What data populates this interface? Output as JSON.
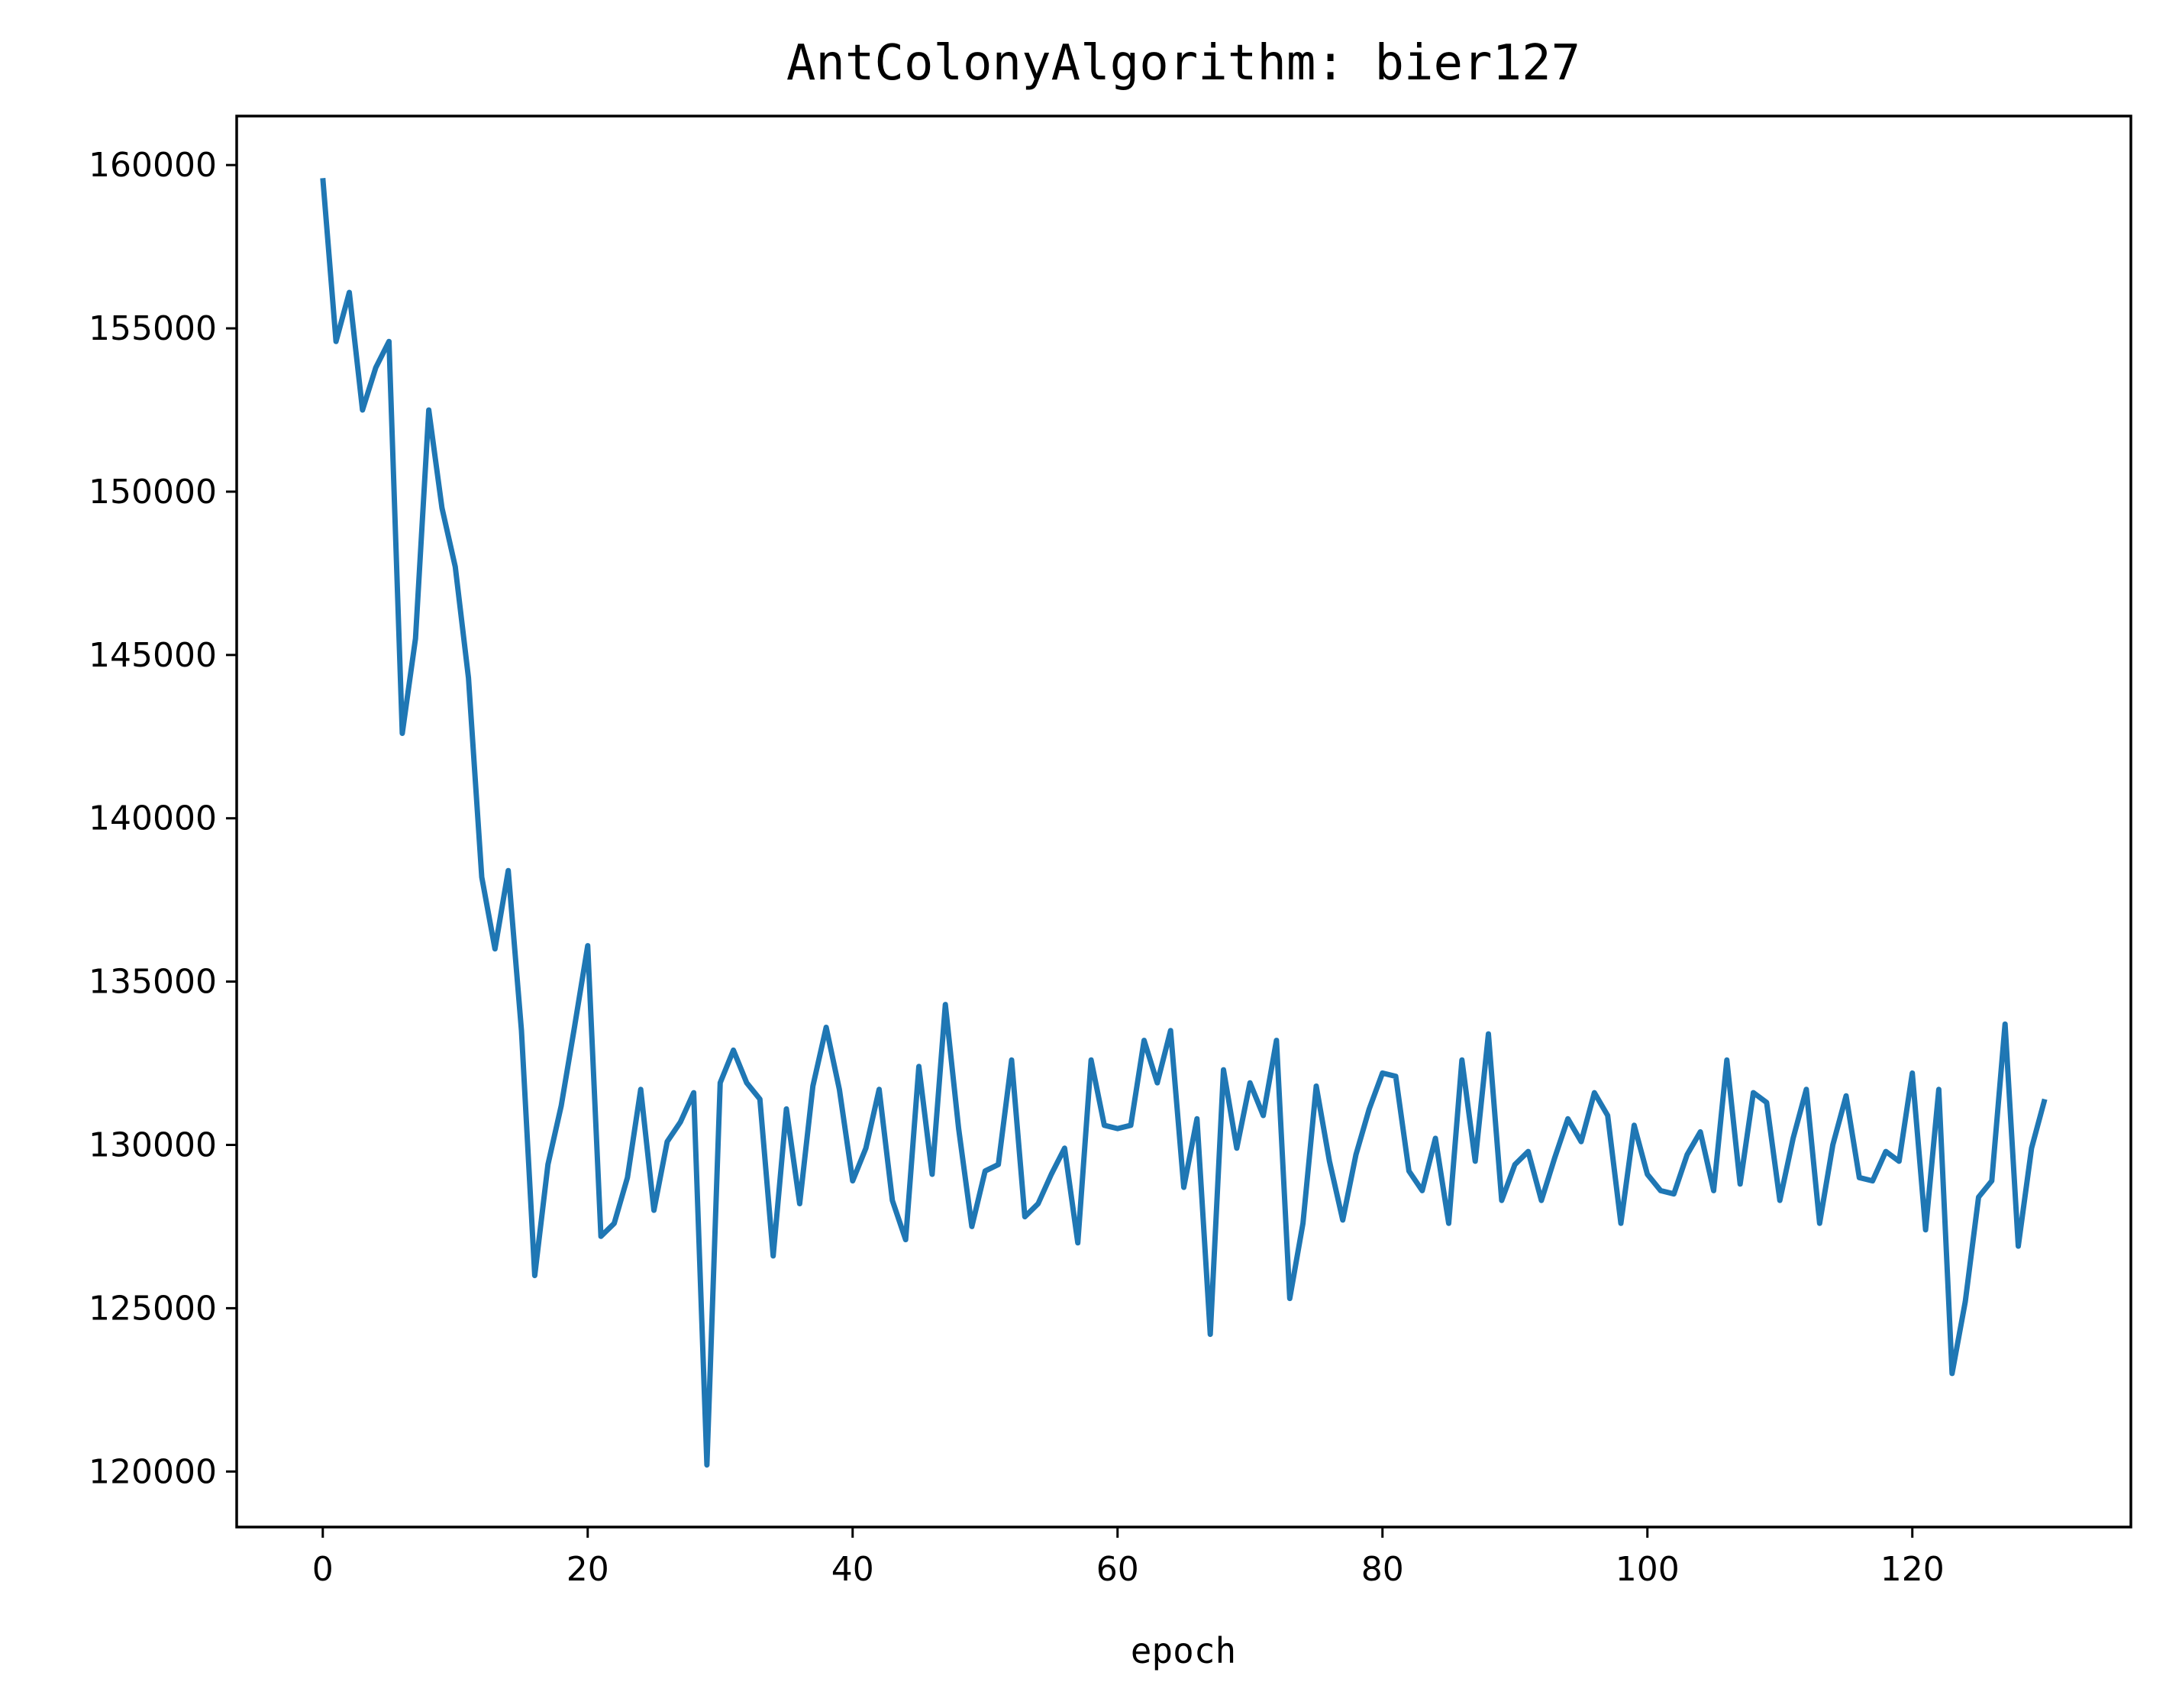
{
  "chart_data": {
    "type": "line",
    "title": "AntColonyAlgorithm: bier127",
    "xlabel": "epoch",
    "ylabel": "",
    "xlim": [
      -6.5,
      136.5
    ],
    "ylim": [
      118300,
      161500
    ],
    "xticks": [
      0,
      20,
      40,
      60,
      80,
      100,
      120
    ],
    "yticks": [
      120000,
      125000,
      130000,
      135000,
      140000,
      145000,
      150000,
      155000,
      160000
    ],
    "grid": false,
    "legend": "none",
    "line_color": "#1f77b4",
    "series": [
      {
        "x": [
          0,
          1,
          2,
          3,
          4,
          5,
          6,
          7,
          8,
          9,
          10,
          11,
          12,
          13,
          14,
          15,
          16,
          17,
          18,
          19,
          20,
          21,
          22,
          23,
          24,
          25,
          26,
          27,
          28,
          29,
          30,
          31,
          32,
          33,
          34,
          35,
          36,
          37,
          38,
          39,
          40,
          41,
          42,
          43,
          44,
          45,
          46,
          47,
          48,
          49,
          50,
          51,
          52,
          53,
          54,
          55,
          56,
          57,
          58,
          59,
          60,
          61,
          62,
          63,
          64,
          65,
          66,
          67,
          68,
          69,
          70,
          71,
          72,
          73,
          74,
          75,
          76,
          77,
          78,
          79,
          80,
          81,
          82,
          83,
          84,
          85,
          86,
          87,
          88,
          89,
          90,
          91,
          92,
          93,
          94,
          95,
          96,
          97,
          98,
          99,
          100,
          101,
          102,
          103,
          104,
          105,
          106,
          107,
          108,
          109,
          110,
          111,
          112,
          113,
          114,
          115,
          116,
          117,
          118,
          119,
          120,
          121,
          122,
          123,
          124,
          125,
          126,
          127,
          128,
          129,
          130
        ],
        "values": [
          159600,
          154600,
          156100,
          152500,
          153800,
          154600,
          142600,
          145500,
          152500,
          149500,
          147700,
          144300,
          138200,
          136000,
          138400,
          133500,
          126000,
          129400,
          131200,
          133600,
          136100,
          127200,
          127600,
          129000,
          131700,
          128000,
          130100,
          130700,
          131600,
          120200,
          131900,
          132900,
          131900,
          131400,
          126600,
          131100,
          128200,
          131800,
          133600,
          131700,
          128900,
          129900,
          131700,
          128300,
          127100,
          132400,
          129100,
          134300,
          130500,
          127500,
          129200,
          129400,
          132600,
          127800,
          128200,
          129100,
          129900,
          127000,
          132600,
          130600,
          130500,
          130600,
          133200,
          131900,
          133500,
          128700,
          130800,
          124200,
          132300,
          129900,
          131900,
          130900,
          133200,
          125300,
          127600,
          131800,
          129500,
          127700,
          129700,
          131100,
          132200,
          132100,
          129200,
          128600,
          130200,
          127600,
          132600,
          129500,
          133400,
          128300,
          129400,
          129800,
          128300,
          129600,
          130800,
          130100,
          131600,
          130900,
          127600,
          130600,
          129100,
          128600,
          128500,
          129700,
          130400,
          128600,
          132600,
          128800,
          131600,
          131300,
          128300,
          130200,
          131700,
          127600,
          130000,
          131500,
          129000,
          128900,
          129800,
          129500,
          132200,
          127400,
          131700,
          123000,
          125200,
          128400,
          128900,
          133700,
          126900,
          129900,
          131400
        ]
      }
    ]
  }
}
